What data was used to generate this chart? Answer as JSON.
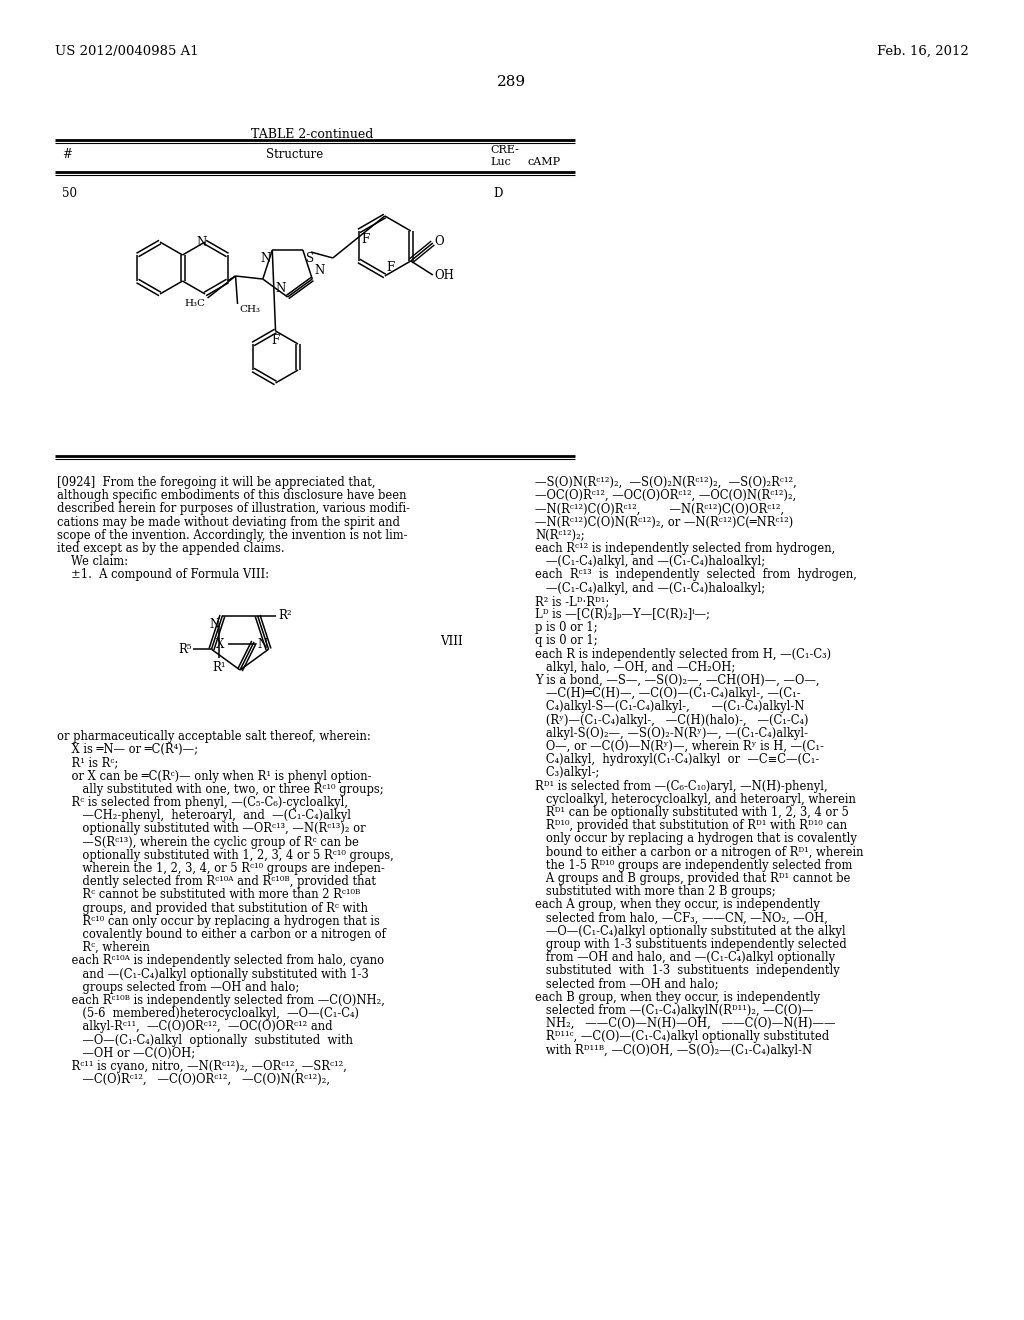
{
  "page_number": "289",
  "patent_number": "US 2012/0040985 A1",
  "patent_date": "Feb. 16, 2012",
  "background_color": "#ffffff"
}
